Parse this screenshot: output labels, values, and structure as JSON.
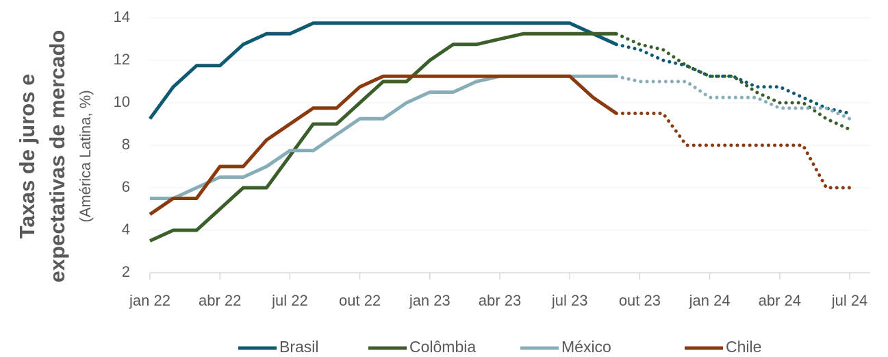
{
  "chart_data": {
    "type": "line",
    "ylabel": [
      "Taxas de juros e",
      "expectativas de mercado"
    ],
    "ylabel_note": "(América Latina, %)",
    "categories": [
      "jan 22",
      null,
      null,
      "abr 22",
      null,
      null,
      "jul 22",
      null,
      null,
      "out 22",
      null,
      null,
      "jan 23",
      null,
      null,
      "abr 23",
      null,
      null,
      "jul 23",
      null,
      null,
      "out 23",
      null,
      null,
      "jan 24",
      null,
      null,
      "abr 24",
      null,
      null,
      "jul 24"
    ],
    "ylim": [
      2,
      14
    ],
    "yticks": [
      2,
      4,
      6,
      8,
      10,
      12,
      14
    ],
    "grid": true,
    "series": [
      {
        "name": "Brasil",
        "color": "#0e5a73",
        "values": [
          9.25,
          10.75,
          11.75,
          11.75,
          12.75,
          13.25,
          13.25,
          13.75,
          13.75,
          13.75,
          13.75,
          13.75,
          13.75,
          13.75,
          13.75,
          13.75,
          13.75,
          13.75,
          13.75,
          13.25,
          12.75,
          null,
          null,
          null,
          null,
          null,
          null,
          null,
          null,
          null,
          null
        ],
        "forecast": [
          null,
          null,
          null,
          null,
          null,
          null,
          null,
          null,
          null,
          null,
          null,
          null,
          null,
          null,
          null,
          null,
          null,
          null,
          null,
          null,
          12.75,
          12.5,
          12.0,
          11.75,
          11.25,
          11.25,
          10.75,
          10.75,
          10.25,
          9.75,
          9.5
        ]
      },
      {
        "name": "Colômbia",
        "color": "#3b5e2b",
        "values": [
          3.5,
          4,
          4,
          5,
          6,
          6,
          7.5,
          9,
          9,
          10,
          11,
          11,
          12,
          12.75,
          12.75,
          13,
          13.25,
          13.25,
          13.25,
          13.25,
          13.25,
          null,
          null,
          null,
          null,
          null,
          null,
          null,
          null,
          null,
          null
        ],
        "forecast": [
          null,
          null,
          null,
          null,
          null,
          null,
          null,
          null,
          null,
          null,
          null,
          null,
          null,
          null,
          null,
          null,
          null,
          null,
          null,
          null,
          13.25,
          12.75,
          12.5,
          11.75,
          11.25,
          11.25,
          10.5,
          10,
          10,
          9.25,
          8.75
        ]
      },
      {
        "name": "México",
        "color": "#86adb8",
        "values": [
          5.5,
          5.5,
          6,
          6.5,
          6.5,
          7,
          7.75,
          7.75,
          8.5,
          9.25,
          9.25,
          10,
          10.5,
          10.5,
          11,
          11.25,
          11.25,
          11.25,
          11.25,
          11.25,
          11.25,
          null,
          null,
          null,
          null,
          null,
          null,
          null,
          null,
          null,
          null
        ],
        "forecast": [
          null,
          null,
          null,
          null,
          null,
          null,
          null,
          null,
          null,
          null,
          null,
          null,
          null,
          null,
          null,
          null,
          null,
          null,
          null,
          null,
          11.25,
          11,
          11,
          11,
          10.25,
          10.25,
          10.25,
          9.75,
          9.75,
          9.75,
          9.25
        ]
      },
      {
        "name": "Chile",
        "color": "#8b3a0f",
        "values": [
          4.75,
          5.5,
          5.5,
          7,
          7,
          8.25,
          9,
          9.75,
          9.75,
          10.75,
          11.25,
          11.25,
          11.25,
          11.25,
          11.25,
          11.25,
          11.25,
          11.25,
          11.25,
          10.25,
          9.5,
          null,
          null,
          null,
          null,
          null,
          null,
          null,
          null,
          null,
          null
        ],
        "forecast": [
          null,
          null,
          null,
          null,
          null,
          null,
          null,
          null,
          null,
          null,
          null,
          null,
          null,
          null,
          null,
          null,
          null,
          null,
          null,
          null,
          9.5,
          9.5,
          9.5,
          8,
          8,
          8,
          8,
          8,
          8,
          6,
          6
        ]
      }
    ]
  }
}
